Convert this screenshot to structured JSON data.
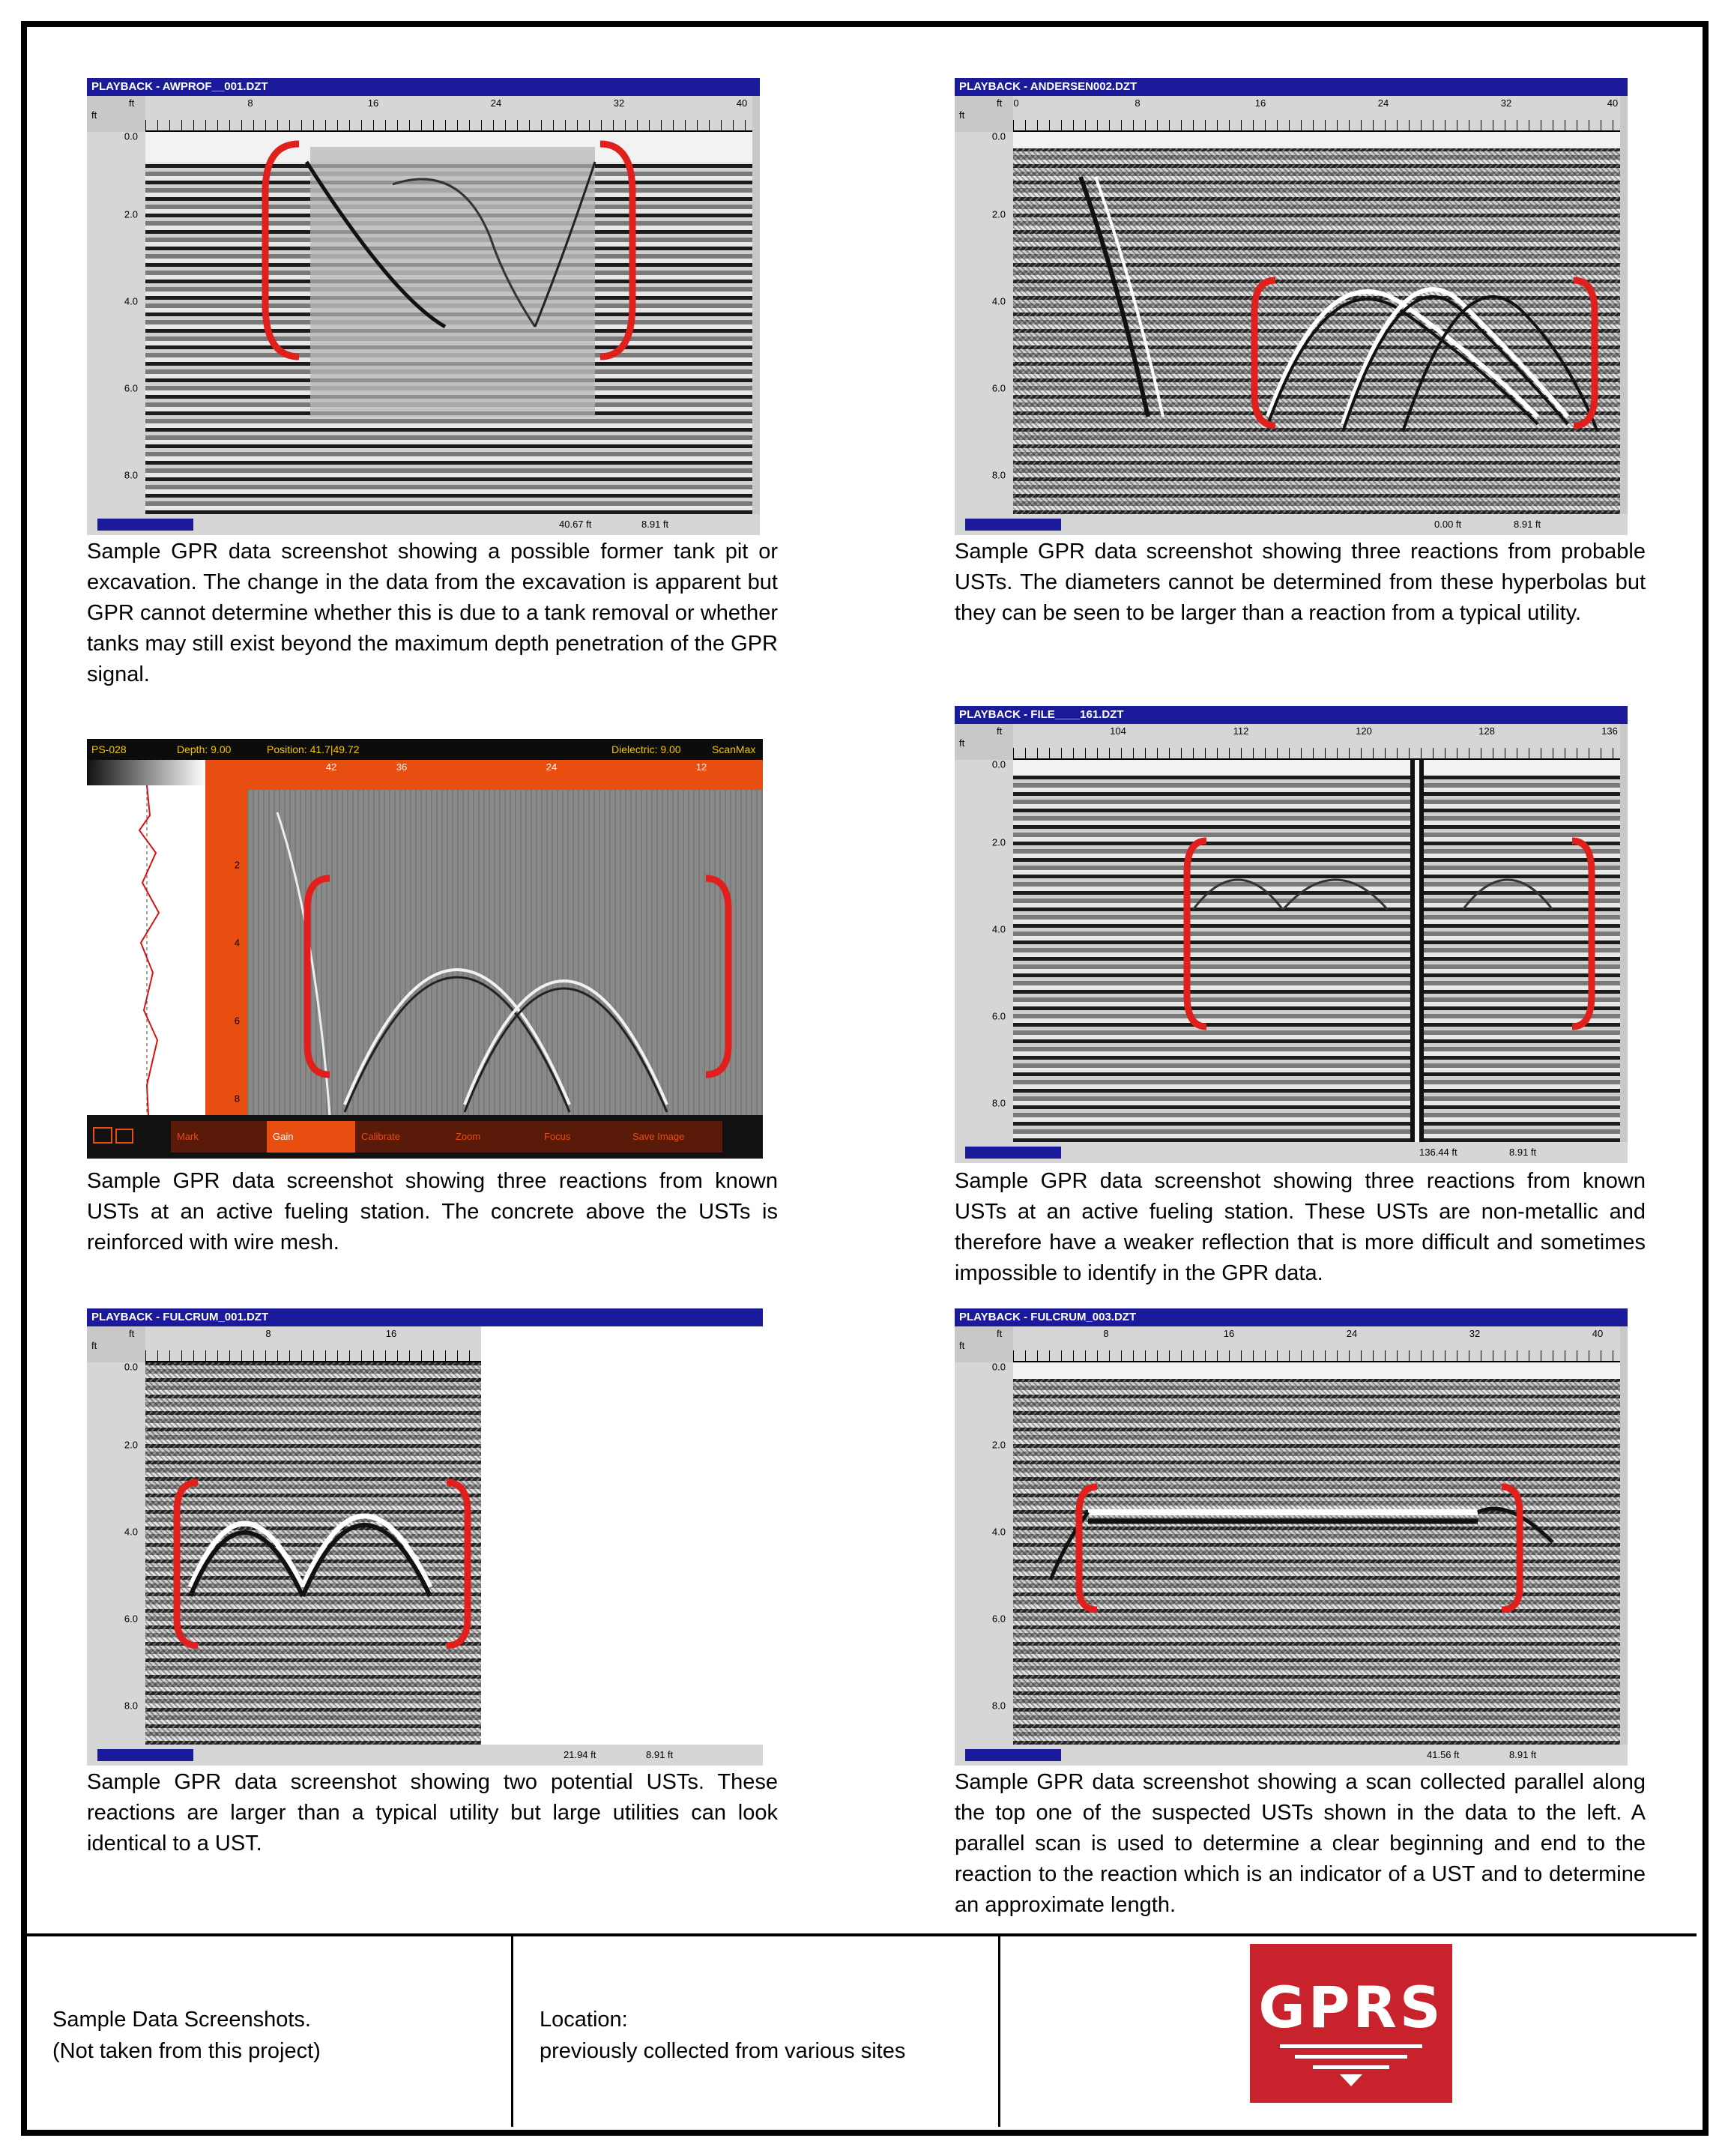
{
  "panels": [
    {
      "title": "PLAYBACK - AWPROF__001.DZT",
      "ruler_labels": [
        "8",
        "16",
        "24",
        "32",
        "40"
      ],
      "depth_labels": [
        "0.0",
        "2.0",
        "4.0",
        "6.0",
        "8.0"
      ],
      "status_position": "40.67 ft",
      "status_depth": "8.91 ft",
      "caption": "Sample GPR data screenshot showing a possible former tank pit or excavation. The change in the data from the excavation is apparent but GPR cannot determine whether this is due to a tank removal or whether tanks may still exist beyond the maximum depth penetration of the GPR signal."
    },
    {
      "title": "PLAYBACK - ANDERSEN002.DZT",
      "ruler_labels": [
        "0",
        "8",
        "16",
        "24",
        "32",
        "40"
      ],
      "depth_labels": [
        "0.0",
        "2.0",
        "4.0",
        "6.0",
        "8.0"
      ],
      "status_position": "0.00 ft",
      "status_depth": "8.91 ft",
      "caption": "Sample GPR data screenshot showing three reactions from probable USTs. The diameters cannot be determined from these hyperbolas but they can be seen to be larger than a reaction from a typical utility."
    },
    {
      "title": "PS-028",
      "top_fields": [
        "Depth: 9.00",
        "Position: 41.7|49.72",
        "Dielectric: 9.00",
        "ScanMax"
      ],
      "ruler_labels": [
        "42",
        "36",
        "24",
        "12"
      ],
      "depth_labels": [
        "2",
        "4",
        "6",
        "8"
      ],
      "menu": [
        "Mark",
        "Gain",
        "Calibrate",
        "Zoom",
        "Focus",
        "Save Image"
      ],
      "caption": "Sample GPR data screenshot showing three reactions from known USTs at an active fueling station.  The concrete above the USTs is reinforced with wire mesh."
    },
    {
      "title": "PLAYBACK - FILE____161.DZT",
      "ruler_labels": [
        "104",
        "112",
        "120",
        "128",
        "136"
      ],
      "depth_labels": [
        "0.0",
        "2.0",
        "4.0",
        "6.0",
        "8.0"
      ],
      "status_position": "136.44 ft",
      "status_depth": "8.91 ft",
      "caption": "Sample GPR data screenshot showing three reactions from known USTs at an active fueling station. These USTs are non-metallic and therefore have a weaker reflection that is more difficult and sometimes impossible to identify in the GPR data."
    },
    {
      "title": "PLAYBACK - FULCRUM_001.DZT",
      "ruler_labels": [
        "8",
        "16"
      ],
      "depth_labels": [
        "0.0",
        "2.0",
        "4.0",
        "6.0",
        "8.0"
      ],
      "status_position": "21.94 ft",
      "status_depth": "8.91 ft",
      "caption": "Sample GPR data screenshot showing two potential USTs. These reactions are larger than a typical utility but large utilities can look identical to a UST."
    },
    {
      "title": "PLAYBACK - FULCRUM_003.DZT",
      "ruler_labels": [
        "8",
        "16",
        "24",
        "32",
        "40"
      ],
      "depth_labels": [
        "0.0",
        "2.0",
        "4.0",
        "6.0",
        "8.0"
      ],
      "status_position": "41.56 ft",
      "status_depth": "8.91 ft",
      "caption": "Sample GPR data screenshot showing a scan collected parallel along the top one of the suspected USTs shown in the data to the left. A parallel scan is used to determine a clear beginning and end to the reaction to the reaction which is an indicator of a UST and to determine an approximate length."
    }
  ],
  "ruler_unit": "ft",
  "footer": {
    "description_line1": "Sample Data Screenshots.",
    "description_line2": "(Not taken from this project)",
    "location_label": "Location:",
    "location_value": "previously collected from various sites",
    "logo_text": "GPRS"
  },
  "colors": {
    "titlebar": "#1a1a9a",
    "bracket": "#e0201c",
    "logo": "#c8232c",
    "scanmax_orange": "#e84e0f"
  }
}
